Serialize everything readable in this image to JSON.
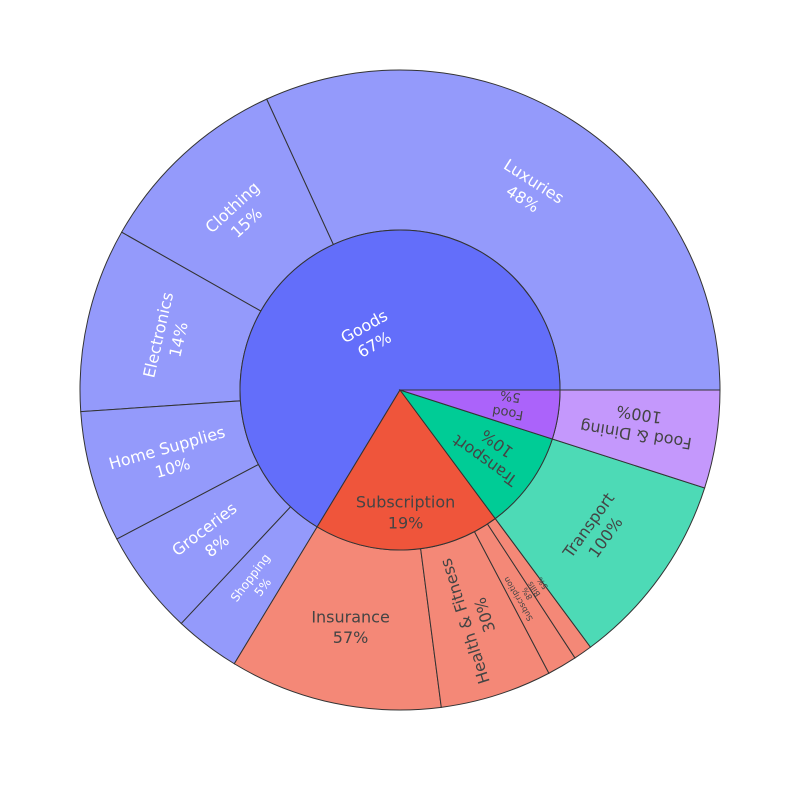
{
  "chart_data": {
    "type": "sunburst",
    "title": "",
    "branchvalues": "total",
    "inner": [
      {
        "id": "goods",
        "label": "Goods",
        "percent": "67%",
        "value": 67,
        "color": "#636efa",
        "text_color": "#ffffff",
        "children": [
          {
            "id": "luxuries",
            "label": "Luxuries",
            "percent": "48%",
            "value": 48,
            "color": "#949afb",
            "text_color": "#ffffff"
          },
          {
            "id": "clothing",
            "label": "Clothing",
            "percent": "15%",
            "value": 15,
            "color": "#949afb",
            "text_color": "#ffffff"
          },
          {
            "id": "electronics",
            "label": "Electronics",
            "percent": "14%",
            "value": 14,
            "color": "#949afb",
            "text_color": "#ffffff"
          },
          {
            "id": "home-supplies",
            "label": "Home Supplies",
            "percent": "10%",
            "value": 10,
            "color": "#949afb",
            "text_color": "#ffffff"
          },
          {
            "id": "groceries",
            "label": "Groceries",
            "percent": "8%",
            "value": 8,
            "color": "#949afb",
            "text_color": "#ffffff"
          },
          {
            "id": "shopping",
            "label": "Shopping",
            "percent": "5%",
            "value": 5,
            "color": "#949afb",
            "text_color": "#ffffff"
          }
        ]
      },
      {
        "id": "subscription",
        "label": "Subscription",
        "percent": "19%",
        "value": 19,
        "color": "#ef553b",
        "text_color": "#444444",
        "children": [
          {
            "id": "insurance",
            "label": "Insurance",
            "percent": "57%",
            "value": 57,
            "color": "#f48877",
            "text_color": "#444444"
          },
          {
            "id": "health-fitness",
            "label": "Health & Fitness",
            "percent": "30%",
            "value": 30,
            "color": "#f48877",
            "text_color": "#444444"
          },
          {
            "id": "subscription-child",
            "label": "Subscription",
            "percent": "8%",
            "value": 8,
            "color": "#f48877",
            "text_color": "#444444"
          },
          {
            "id": "bills",
            "label": "Bills",
            "percent": "5%",
            "value": 5,
            "color": "#f48877",
            "text_color": "#444444"
          }
        ]
      },
      {
        "id": "transport",
        "label": "Transport",
        "percent": "10%",
        "value": 10,
        "color": "#00cc96",
        "text_color": "#444444",
        "children": [
          {
            "id": "transport-child",
            "label": "Transport",
            "percent": "100%",
            "value": 100,
            "color": "#4ddab6",
            "text_color": "#444444"
          }
        ]
      },
      {
        "id": "food",
        "label": "Food",
        "percent": "5%",
        "value": 5,
        "color": "#ab63fa",
        "text_color": "#444444",
        "children": [
          {
            "id": "food-dining",
            "label": "Food & Dining",
            "percent": "100%",
            "value": 100,
            "color": "#c498fc",
            "text_color": "#444444"
          }
        ]
      }
    ]
  }
}
